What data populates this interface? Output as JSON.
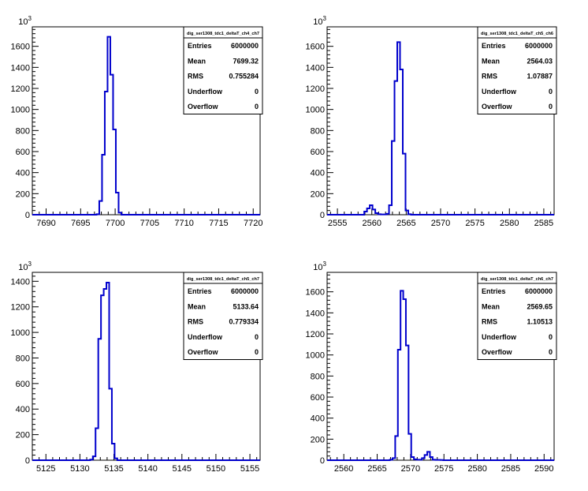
{
  "chart_data": [
    {
      "type": "histogram",
      "exponent_label": "10",
      "exponent_power": "3",
      "xlim": [
        7688,
        7721
      ],
      "ylim": [
        0,
        1785
      ],
      "x_major_ticks": [
        7690,
        7695,
        7700,
        7705,
        7710,
        7715,
        7720
      ],
      "x_tick_labels": [
        "7690",
        "7695",
        "7700",
        "7705",
        "7710",
        "7715",
        "7720"
      ],
      "y_major_ticks": [
        0,
        200,
        400,
        600,
        800,
        1000,
        1200,
        1400,
        1600
      ],
      "y_tick_labels": [
        "0",
        "200",
        "400",
        "600",
        "800",
        "1000",
        "1200",
        "1400",
        "1600"
      ],
      "line_color": "#0000cc",
      "bin_edges": [
        7697.3,
        7697.7,
        7698.1,
        7698.5,
        7698.9,
        7699.3,
        7699.7,
        7700.1,
        7700.5,
        7700.9
      ],
      "values": [
        5,
        130,
        570,
        1170,
        1690,
        1330,
        810,
        210,
        20
      ],
      "stats": {
        "name": "dig_ser1308_tdc1_deltaT_ch4_ch7",
        "rows": [
          {
            "label": "Entries",
            "value": "6000000"
          },
          {
            "label": "Mean",
            "value": "7699.32"
          },
          {
            "label": "RMS",
            "value": "0.755284"
          },
          {
            "label": "Underflow",
            "value": "0"
          },
          {
            "label": "Overflow",
            "value": "0"
          }
        ]
      }
    },
    {
      "type": "histogram",
      "exponent_label": "10",
      "exponent_power": "3",
      "xlim": [
        2553.5,
        2586.5
      ],
      "ylim": [
        0,
        1785
      ],
      "x_major_ticks": [
        2555,
        2560,
        2565,
        2570,
        2575,
        2580,
        2585
      ],
      "x_tick_labels": [
        "2555",
        "2560",
        "2565",
        "2570",
        "2575",
        "2580",
        "2585"
      ],
      "y_major_ticks": [
        0,
        200,
        400,
        600,
        800,
        1000,
        1200,
        1400,
        1600
      ],
      "y_tick_labels": [
        "0",
        "200",
        "400",
        "600",
        "800",
        "1000",
        "1200",
        "1400",
        "1600"
      ],
      "line_color": "#0000cc",
      "bin_edges": [
        2558.9,
        2559.3,
        2559.7,
        2560.1,
        2560.5,
        2560.9,
        2561.3,
        2561.7,
        2562.1,
        2562.5,
        2562.9,
        2563.3,
        2563.7,
        2564.1,
        2564.5,
        2564.9,
        2565.3,
        2565.7
      ],
      "values": [
        30,
        60,
        90,
        50,
        15,
        5,
        3,
        3,
        8,
        90,
        700,
        1270,
        1640,
        1380,
        580,
        40,
        5
      ],
      "stats": {
        "name": "dig_ser1308_tdc1_deltaT_ch5_ch6",
        "rows": [
          {
            "label": "Entries",
            "value": "6000000"
          },
          {
            "label": "Mean",
            "value": "2564.03"
          },
          {
            "label": "RMS",
            "value": "1.07887"
          },
          {
            "label": "Underflow",
            "value": "0"
          },
          {
            "label": "Overflow",
            "value": "0"
          }
        ]
      }
    },
    {
      "type": "histogram",
      "exponent_label": "10",
      "exponent_power": "3",
      "xlim": [
        5123,
        5156.5
      ],
      "ylim": [
        0,
        1470
      ],
      "x_major_ticks": [
        5125,
        5130,
        5135,
        5140,
        5145,
        5150,
        5155
      ],
      "x_tick_labels": [
        "5125",
        "5130",
        "5135",
        "5140",
        "5145",
        "5150",
        "5155"
      ],
      "y_major_ticks": [
        0,
        200,
        400,
        600,
        800,
        1000,
        1200,
        1400
      ],
      "y_tick_labels": [
        "0",
        "200",
        "400",
        "600",
        "800",
        "1000",
        "1200",
        "1400"
      ],
      "line_color": "#0000cc",
      "bin_edges": [
        5131.5,
        5131.9,
        5132.3,
        5132.7,
        5133.1,
        5133.5,
        5133.9,
        5134.3,
        5134.7,
        5135.1,
        5135.5
      ],
      "values": [
        5,
        30,
        250,
        950,
        1290,
        1340,
        1390,
        560,
        130,
        15
      ],
      "stats": {
        "name": "dig_ser1308_tdc1_deltaT_ch5_ch7",
        "rows": [
          {
            "label": "Entries",
            "value": "6000000"
          },
          {
            "label": "Mean",
            "value": "5133.64"
          },
          {
            "label": "RMS",
            "value": "0.779334"
          },
          {
            "label": "Underflow",
            "value": "0"
          },
          {
            "label": "Overflow",
            "value": "0"
          }
        ]
      }
    },
    {
      "type": "histogram",
      "exponent_label": "10",
      "exponent_power": "3",
      "xlim": [
        2557.5,
        2591.5
      ],
      "ylim": [
        0,
        1785
      ],
      "x_major_ticks": [
        2560,
        2565,
        2570,
        2575,
        2580,
        2585,
        2590
      ],
      "x_tick_labels": [
        "2560",
        "2565",
        "2570",
        "2575",
        "2580",
        "2585",
        "2590"
      ],
      "y_major_ticks": [
        0,
        200,
        400,
        600,
        800,
        1000,
        1200,
        1400,
        1600
      ],
      "y_tick_labels": [
        "0",
        "200",
        "400",
        "600",
        "800",
        "1000",
        "1200",
        "1400",
        "1600"
      ],
      "line_color": "#0000cc",
      "bin_edges": [
        2566.9,
        2567.3,
        2567.7,
        2568.1,
        2568.5,
        2568.9,
        2569.3,
        2569.7,
        2570.1,
        2570.5,
        2570.9,
        2571.3,
        2571.7,
        2572.1,
        2572.5,
        2572.9,
        2573.3,
        2573.7,
        2574.1,
        2574.5,
        2574.9
      ],
      "values": [
        5,
        20,
        230,
        1050,
        1610,
        1530,
        1090,
        250,
        30,
        8,
        5,
        5,
        20,
        50,
        80,
        30,
        5,
        3,
        3,
        2
      ],
      "stats": {
        "name": "dig_ser1308_tdc1_deltaT_ch6_ch7",
        "rows": [
          {
            "label": "Entries",
            "value": "6000000"
          },
          {
            "label": "Mean",
            "value": "2569.65"
          },
          {
            "label": "RMS",
            "value": "1.10513"
          },
          {
            "label": "Underflow",
            "value": "0"
          },
          {
            "label": "Overflow",
            "value": "0"
          }
        ]
      }
    }
  ]
}
